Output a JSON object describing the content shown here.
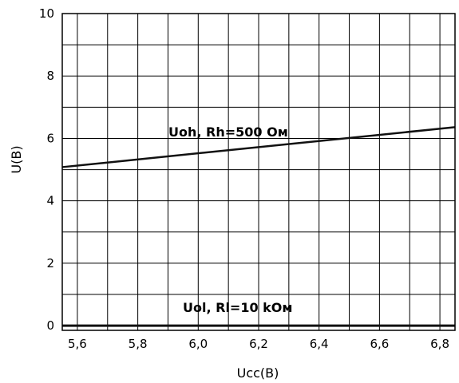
{
  "chart_data": {
    "type": "line",
    "xlabel": "Ucc(B)",
    "ylabel": "U(B)",
    "xlim": [
      5.55,
      6.85
    ],
    "ylim": [
      -0.15,
      10
    ],
    "x_ticks": [
      "5,6",
      "5,8",
      "6,0",
      "6,2",
      "6,4",
      "6,6",
      "6,8"
    ],
    "y_ticks": [
      "0",
      "2",
      "4",
      "6",
      "8",
      "10"
    ],
    "grid": true,
    "series": [
      {
        "name": "Uoh, Rh=500 Ом",
        "x": [
          5.55,
          6.85
        ],
        "y": [
          5.08,
          6.36
        ]
      },
      {
        "name": "Uol, Rl=10 kОм",
        "x": [
          5.55,
          6.85
        ],
        "y": [
          0.0,
          0.0
        ]
      }
    ],
    "annotations": [
      "Uoh, Rh=500 Ом",
      "Uol, Rl=10 kОм"
    ]
  }
}
